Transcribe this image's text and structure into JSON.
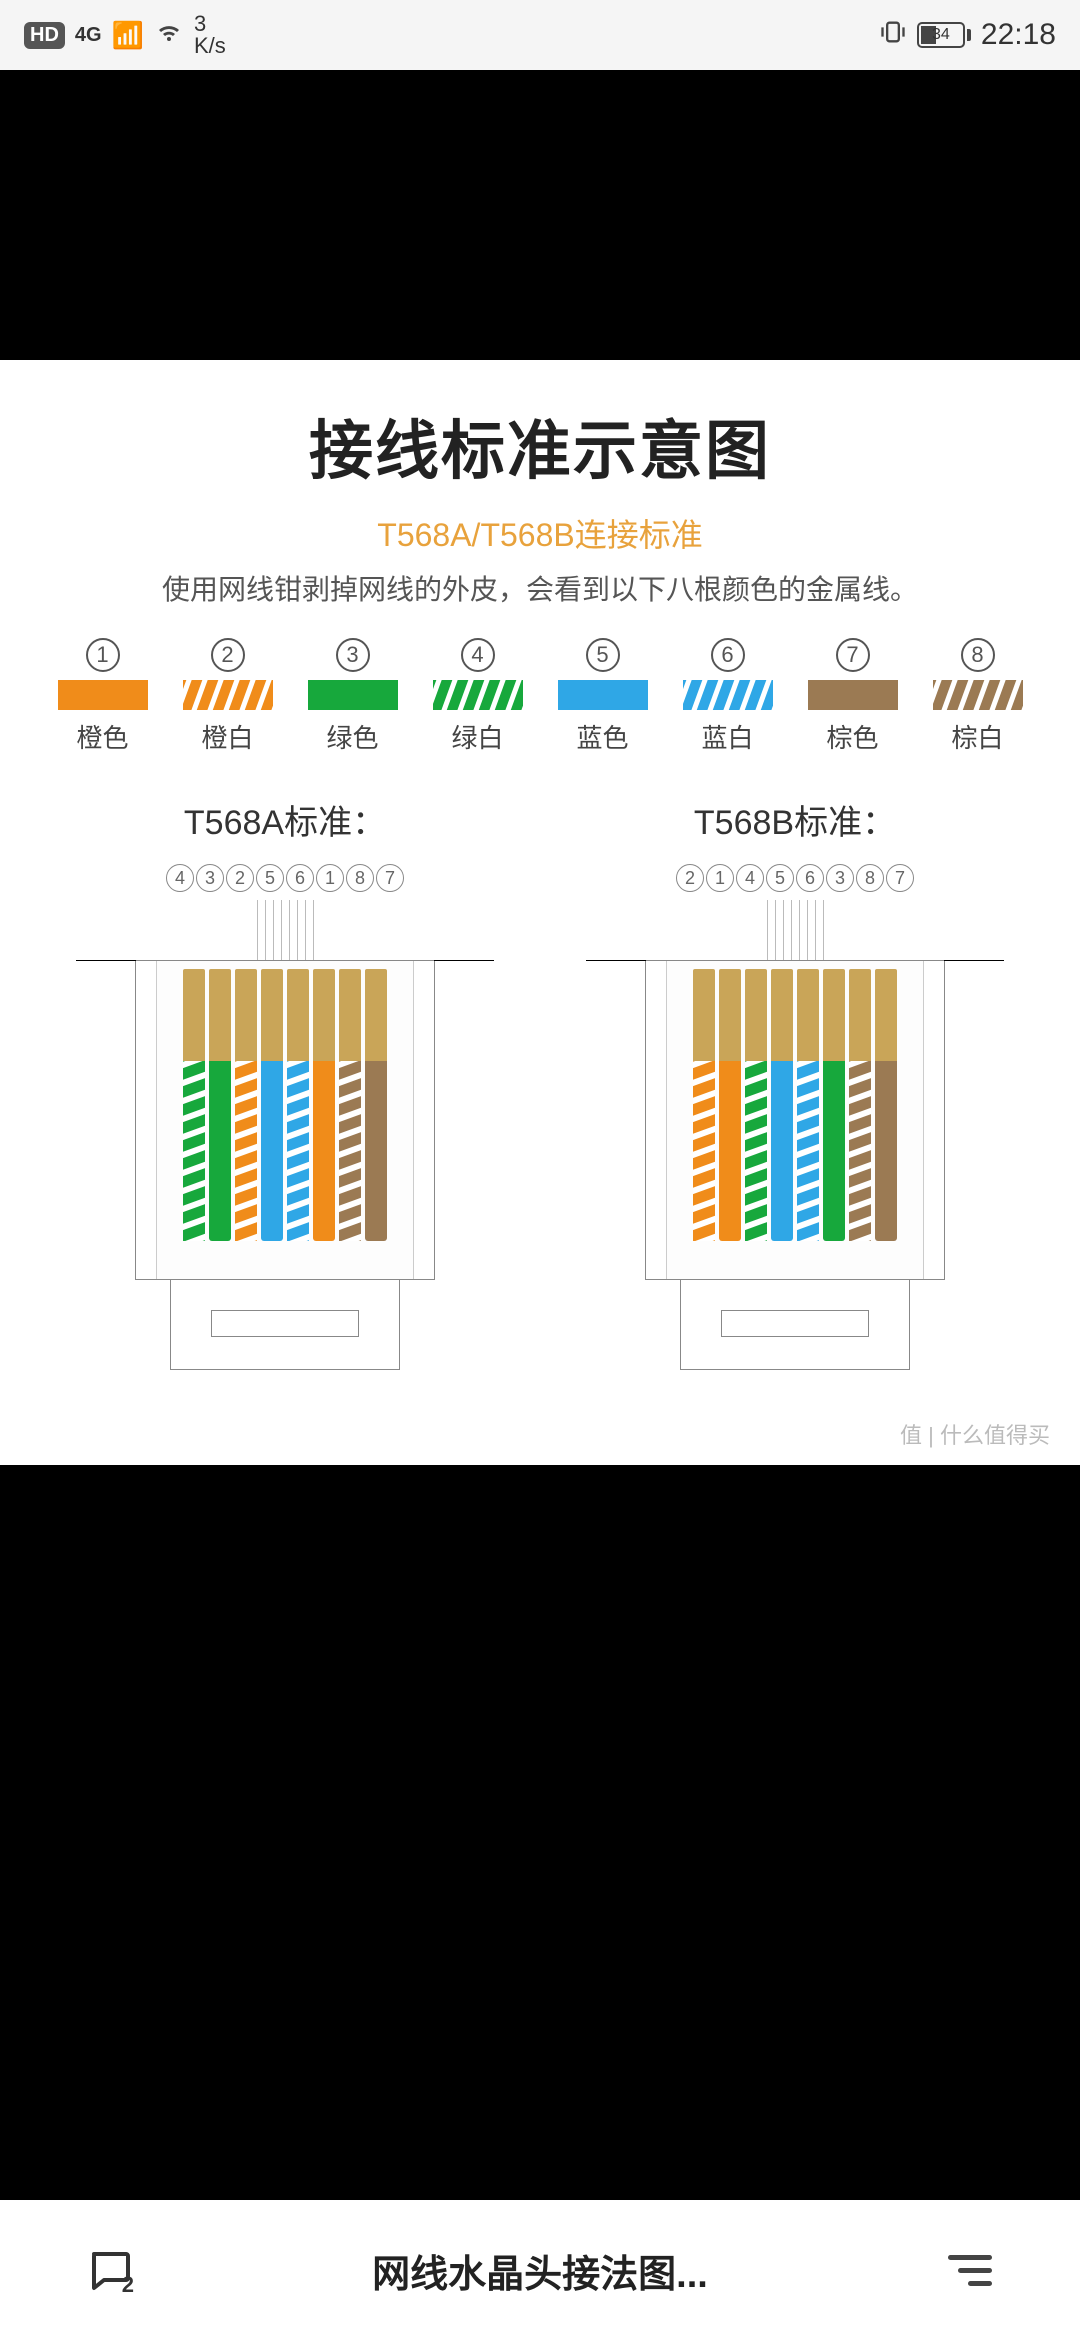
{
  "status_bar": {
    "hd": "HD",
    "net": "4G",
    "speed_num": "3",
    "speed_unit": "K/s",
    "battery": "34",
    "time": "22:18"
  },
  "diagram": {
    "title": "接线标准示意图",
    "subtitle": "T568A/T568B连接标准",
    "description": "使用网线钳剥掉网线的外皮，会看到以下八根颜色的金属线。",
    "colors": {
      "orange": "#f08c1a",
      "green": "#17a83c",
      "blue": "#2fa7e6",
      "brown": "#9b7a53",
      "white": "#ffffff",
      "gold_pin": "#c9a558",
      "title_color": "#222222",
      "subtitle_color": "#e8a23c",
      "text_color": "#555555",
      "outline": "#888888",
      "bg": "#ffffff"
    },
    "legend": [
      {
        "num": "①",
        "label": "橙色",
        "type": "solid",
        "color": "orange"
      },
      {
        "num": "②",
        "label": "橙白",
        "type": "stripe",
        "color": "orange"
      },
      {
        "num": "③",
        "label": "绿色",
        "type": "solid",
        "color": "green"
      },
      {
        "num": "④",
        "label": "绿白",
        "type": "stripe",
        "color": "green"
      },
      {
        "num": "⑤",
        "label": "蓝色",
        "type": "solid",
        "color": "blue"
      },
      {
        "num": "⑥",
        "label": "蓝白",
        "type": "stripe",
        "color": "blue"
      },
      {
        "num": "⑦",
        "label": "棕色",
        "type": "solid",
        "color": "brown"
      },
      {
        "num": "⑧",
        "label": "棕白",
        "type": "stripe",
        "color": "brown"
      }
    ],
    "standards": {
      "a": {
        "title": "T568A标准：",
        "order_labels": [
          "④",
          "③",
          "②",
          "⑤",
          "⑥",
          "①",
          "⑧",
          "⑦"
        ],
        "wires": [
          {
            "type": "stripe",
            "color": "green"
          },
          {
            "type": "solid",
            "color": "green"
          },
          {
            "type": "stripe",
            "color": "orange"
          },
          {
            "type": "solid",
            "color": "blue"
          },
          {
            "type": "stripe",
            "color": "blue"
          },
          {
            "type": "solid",
            "color": "orange"
          },
          {
            "type": "stripe",
            "color": "brown"
          },
          {
            "type": "solid",
            "color": "brown"
          }
        ]
      },
      "b": {
        "title": "T568B标准：",
        "order_labels": [
          "②",
          "①",
          "④",
          "⑤",
          "⑥",
          "③",
          "⑧",
          "⑦"
        ],
        "wires": [
          {
            "type": "stripe",
            "color": "orange"
          },
          {
            "type": "solid",
            "color": "orange"
          },
          {
            "type": "stripe",
            "color": "green"
          },
          {
            "type": "solid",
            "color": "blue"
          },
          {
            "type": "stripe",
            "color": "blue"
          },
          {
            "type": "solid",
            "color": "green"
          },
          {
            "type": "stripe",
            "color": "brown"
          },
          {
            "type": "solid",
            "color": "brown"
          }
        ]
      }
    },
    "watermark": "值 | 什么值得买"
  },
  "bottom": {
    "comment_count": "2",
    "title": "网线水晶头接法图..."
  }
}
